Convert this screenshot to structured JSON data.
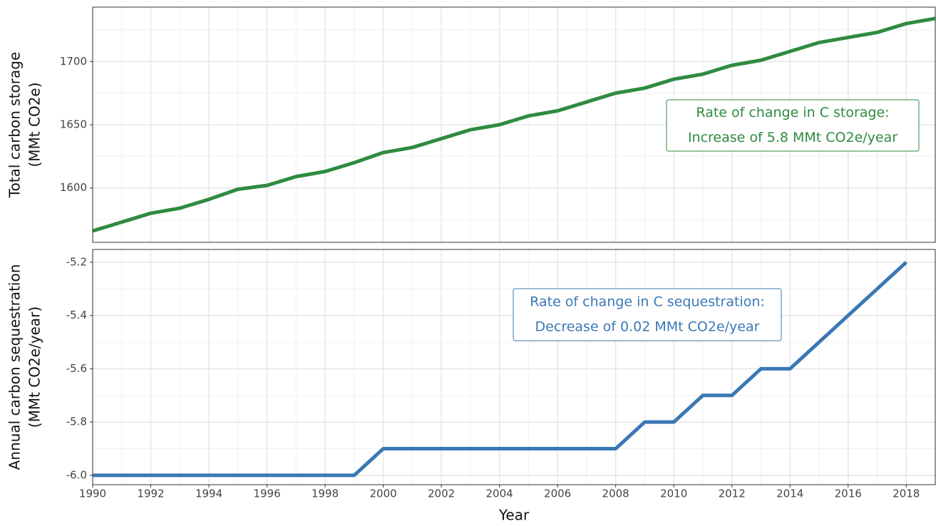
{
  "chart_data": [
    {
      "type": "line",
      "ylabel": [
        "Total carbon storage",
        "(MMt CO2e)"
      ],
      "x": [
        1990,
        1991,
        1992,
        1993,
        1994,
        1995,
        1996,
        1997,
        1998,
        1999,
        2000,
        2001,
        2002,
        2003,
        2004,
        2005,
        2006,
        2007,
        2008,
        2009,
        2010,
        2011,
        2012,
        2013,
        2014,
        2015,
        2016,
        2017,
        2018,
        2019
      ],
      "values": [
        1566,
        1573,
        1580,
        1584,
        1591,
        1599,
        1602,
        1609,
        1613,
        1620,
        1628,
        1632,
        1639,
        1646,
        1650,
        1657,
        1661,
        1668,
        1675,
        1679,
        1686,
        1690,
        1697,
        1701,
        1708,
        1715,
        1719,
        1723,
        1730,
        1734
      ],
      "color": "#2e8b40",
      "xlim": [
        1990,
        2019
      ],
      "xticks": [
        1990,
        1992,
        1994,
        1996,
        1998,
        2000,
        2002,
        2004,
        2006,
        2008,
        2010,
        2012,
        2014,
        2016,
        2018
      ],
      "show_xtick_labels": false,
      "ylim": [
        1557,
        1743
      ],
      "yticks": [
        1600,
        1650,
        1700
      ],
      "grid": true,
      "minor_grid": true,
      "annotation": [
        "Rate of change in C storage:",
        "Increase of 5.8 MMt CO2e/year"
      ]
    },
    {
      "type": "line",
      "xlabel": "Year",
      "ylabel": [
        "Annual carbon sequestration",
        "(MMt CO2e/year)"
      ],
      "x": [
        1990,
        1991,
        1992,
        1993,
        1994,
        1995,
        1996,
        1997,
        1998,
        1999,
        2000,
        2001,
        2002,
        2003,
        2004,
        2005,
        2006,
        2007,
        2008,
        2009,
        2010,
        2011,
        2012,
        2013,
        2014,
        2015,
        2016,
        2017,
        2018
      ],
      "values": [
        -6,
        -6,
        -6,
        -6,
        -6,
        -6,
        -6,
        -6,
        -6,
        -6,
        -5.9,
        -5.9,
        -5.9,
        -5.9,
        -5.9,
        -5.9,
        -5.9,
        -5.9,
        -5.9,
        -5.8,
        -5.8,
        -5.7,
        -5.7,
        -5.6,
        -5.6,
        -5.5,
        -5.4,
        -5.3,
        -5.2
      ],
      "color": "#3a78b5",
      "xlim": [
        1990,
        2019
      ],
      "xticks": [
        1990,
        1992,
        1994,
        1996,
        1998,
        2000,
        2002,
        2004,
        2006,
        2008,
        2010,
        2012,
        2014,
        2016,
        2018
      ],
      "show_xtick_labels": true,
      "ylim": [
        -6.035,
        -5.152
      ],
      "yticks": [
        {
          "value": -6,
          "label": "-6.0"
        },
        -5.8,
        -5.6,
        -5.4,
        -5.2
      ],
      "grid": true,
      "minor_grid": true,
      "annotation": [
        "Rate of change in C sequestration:",
        "Decrease of 0.02 MMt CO2e/year"
      ]
    }
  ]
}
